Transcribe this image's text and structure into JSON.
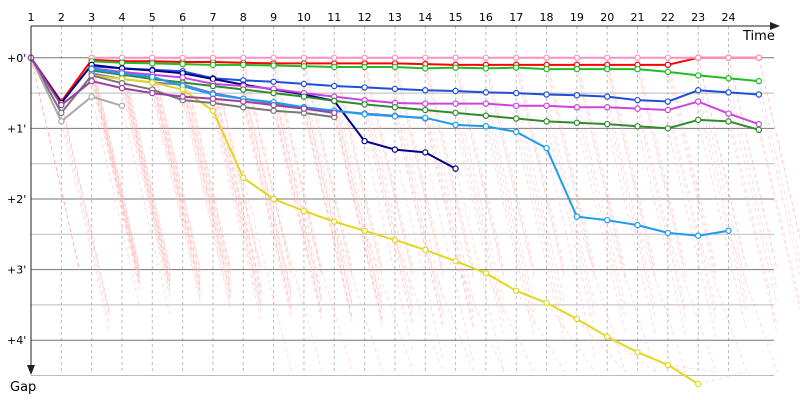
{
  "chart_data": {
    "type": "line",
    "xlabel": "Time",
    "ylabel": "Gap",
    "x_ticks": [
      "1",
      "2",
      "3",
      "4",
      "5",
      "6",
      "7",
      "8",
      "9",
      "10",
      "11",
      "12",
      "13",
      "14",
      "15",
      "16",
      "17",
      "18",
      "19",
      "20",
      "21",
      "22",
      "23",
      "24"
    ],
    "y_ticks": [
      "+0'",
      "+1'",
      "+2'",
      "+3'",
      "+4'"
    ],
    "y_tick_values": [
      0,
      1,
      2,
      3,
      4
    ],
    "xlim": [
      1,
      25.5
    ],
    "ylim": [
      -0.45,
      4.45
    ],
    "grid": true,
    "series": [
      {
        "color": "#ff0000",
        "points": [
          [
            1,
            0.0
          ],
          [
            2,
            0.62
          ],
          [
            3,
            0.03
          ],
          [
            4,
            0.05
          ],
          [
            5,
            0.05
          ],
          [
            6,
            0.06
          ],
          [
            7,
            0.06
          ],
          [
            8,
            0.07
          ],
          [
            9,
            0.08
          ],
          [
            10,
            0.08
          ],
          [
            11,
            0.08
          ],
          [
            12,
            0.08
          ],
          [
            13,
            0.08
          ],
          [
            14,
            0.09
          ],
          [
            15,
            0.1
          ],
          [
            16,
            0.1
          ],
          [
            17,
            0.1
          ],
          [
            18,
            0.1
          ],
          [
            19,
            0.1
          ],
          [
            20,
            0.1
          ],
          [
            21,
            0.1
          ],
          [
            22,
            0.1
          ],
          [
            23,
            0.0
          ],
          [
            24,
            0.0
          ],
          [
            25,
            0.0
          ]
        ]
      },
      {
        "color": "#ff8fbf",
        "points": [
          [
            3,
            0.0
          ],
          [
            4,
            0.0
          ],
          [
            5,
            0.0
          ],
          [
            6,
            0.0
          ],
          [
            7,
            0.0
          ],
          [
            8,
            0.0
          ],
          [
            9,
            0.0
          ],
          [
            10,
            0.0
          ],
          [
            11,
            0.0
          ],
          [
            12,
            0.0
          ],
          [
            13,
            0.0
          ],
          [
            14,
            0.0
          ],
          [
            15,
            0.0
          ],
          [
            16,
            0.0
          ],
          [
            17,
            0.0
          ],
          [
            18,
            0.0
          ],
          [
            19,
            0.0
          ],
          [
            20,
            0.0
          ],
          [
            21,
            0.0
          ],
          [
            22,
            0.0
          ],
          [
            23,
            0.0
          ],
          [
            24,
            0.0
          ],
          [
            25,
            0.0
          ]
        ]
      },
      {
        "color": "#22bb22",
        "points": [
          [
            3,
            0.05
          ],
          [
            4,
            0.07
          ],
          [
            5,
            0.08
          ],
          [
            6,
            0.09
          ],
          [
            7,
            0.1
          ],
          [
            8,
            0.1
          ],
          [
            9,
            0.11
          ],
          [
            10,
            0.12
          ],
          [
            11,
            0.13
          ],
          [
            12,
            0.13
          ],
          [
            13,
            0.13
          ],
          [
            14,
            0.15
          ],
          [
            15,
            0.14
          ],
          [
            16,
            0.15
          ],
          [
            17,
            0.14
          ],
          [
            18,
            0.16
          ],
          [
            19,
            0.16
          ],
          [
            20,
            0.16
          ],
          [
            21,
            0.16
          ],
          [
            22,
            0.2
          ],
          [
            23,
            0.25
          ],
          [
            24,
            0.29
          ],
          [
            25,
            0.33
          ]
        ]
      },
      {
        "color": "#1e4fd8",
        "points": [
          [
            3,
            0.12
          ],
          [
            4,
            0.15
          ],
          [
            5,
            0.17
          ],
          [
            6,
            0.19
          ],
          [
            7,
            0.29
          ],
          [
            8,
            0.32
          ],
          [
            9,
            0.34
          ],
          [
            10,
            0.37
          ],
          [
            11,
            0.4
          ],
          [
            12,
            0.42
          ],
          [
            13,
            0.44
          ],
          [
            14,
            0.46
          ],
          [
            15,
            0.47
          ],
          [
            16,
            0.49
          ],
          [
            17,
            0.5
          ],
          [
            18,
            0.52
          ],
          [
            19,
            0.53
          ],
          [
            20,
            0.55
          ],
          [
            21,
            0.6
          ],
          [
            22,
            0.62
          ],
          [
            23,
            0.46
          ],
          [
            24,
            0.49
          ],
          [
            25,
            0.52
          ]
        ]
      },
      {
        "color": "#000088",
        "points": [
          [
            1,
            0.0
          ],
          [
            2,
            0.64
          ],
          [
            3,
            0.1
          ],
          [
            4,
            0.15
          ],
          [
            5,
            0.18
          ],
          [
            6,
            0.22
          ],
          [
            7,
            0.3
          ],
          [
            8,
            0.38
          ],
          [
            9,
            0.45
          ],
          [
            10,
            0.52
          ],
          [
            11,
            0.61
          ],
          [
            12,
            1.18
          ],
          [
            13,
            1.3
          ],
          [
            14,
            1.34
          ],
          [
            15,
            1.57
          ]
        ]
      },
      {
        "color": "#cc44dd",
        "points": [
          [
            3,
            0.15
          ],
          [
            4,
            0.2
          ],
          [
            5,
            0.24
          ],
          [
            6,
            0.28
          ],
          [
            7,
            0.37
          ],
          [
            8,
            0.4
          ],
          [
            9,
            0.44
          ],
          [
            10,
            0.5
          ],
          [
            11,
            0.55
          ],
          [
            12,
            0.6
          ],
          [
            13,
            0.64
          ],
          [
            14,
            0.65
          ],
          [
            15,
            0.65
          ],
          [
            16,
            0.65
          ],
          [
            17,
            0.68
          ],
          [
            18,
            0.68
          ],
          [
            19,
            0.7
          ],
          [
            20,
            0.7
          ],
          [
            21,
            0.72
          ],
          [
            22,
            0.74
          ],
          [
            23,
            0.62
          ],
          [
            24,
            0.79
          ],
          [
            25,
            0.94
          ]
        ]
      },
      {
        "color": "#2e8b2e",
        "points": [
          [
            3,
            0.18
          ],
          [
            4,
            0.24
          ],
          [
            5,
            0.3
          ],
          [
            6,
            0.35
          ],
          [
            7,
            0.4
          ],
          [
            8,
            0.45
          ],
          [
            9,
            0.5
          ],
          [
            10,
            0.55
          ],
          [
            11,
            0.61
          ],
          [
            12,
            0.66
          ],
          [
            13,
            0.7
          ],
          [
            14,
            0.74
          ],
          [
            15,
            0.78
          ],
          [
            16,
            0.82
          ],
          [
            17,
            0.86
          ],
          [
            18,
            0.9
          ],
          [
            19,
            0.92
          ],
          [
            20,
            0.94
          ],
          [
            21,
            0.97
          ],
          [
            22,
            1.0
          ],
          [
            23,
            0.88
          ],
          [
            24,
            0.9
          ],
          [
            25,
            1.02
          ]
        ]
      },
      {
        "color": "#8877cc",
        "points": [
          [
            3,
            0.22
          ],
          [
            4,
            0.3
          ],
          [
            5,
            0.35
          ],
          [
            6,
            0.38
          ],
          [
            7,
            0.5
          ],
          [
            8,
            0.58
          ],
          [
            9,
            0.65
          ],
          [
            10,
            0.7
          ],
          [
            11,
            0.75
          ],
          [
            12,
            0.79
          ],
          [
            13,
            0.82
          ],
          [
            14,
            0.86
          ]
        ]
      },
      {
        "color": "#1a9cf0",
        "points": [
          [
            3,
            0.16
          ],
          [
            4,
            0.22
          ],
          [
            5,
            0.27
          ],
          [
            6,
            0.4
          ],
          [
            7,
            0.52
          ],
          [
            8,
            0.58
          ],
          [
            9,
            0.63
          ],
          [
            10,
            0.7
          ],
          [
            11,
            0.75
          ],
          [
            12,
            0.8
          ],
          [
            13,
            0.83
          ],
          [
            14,
            0.85
          ],
          [
            15,
            0.95
          ],
          [
            16,
            0.97
          ],
          [
            17,
            1.05
          ],
          [
            18,
            1.28
          ],
          [
            19,
            2.25
          ],
          [
            20,
            2.3
          ],
          [
            21,
            2.37
          ],
          [
            22,
            2.48
          ],
          [
            23,
            2.52
          ],
          [
            24,
            2.45
          ]
        ]
      },
      {
        "color": "#e0d820",
        "points": [
          [
            3,
            0.25
          ],
          [
            4,
            0.3
          ],
          [
            5,
            0.35
          ],
          [
            6,
            0.45
          ],
          [
            7,
            0.75
          ],
          [
            8,
            1.7
          ],
          [
            9,
            2.0
          ],
          [
            10,
            2.17
          ],
          [
            11,
            2.32
          ],
          [
            12,
            2.45
          ],
          [
            13,
            2.58
          ],
          [
            14,
            2.72
          ],
          [
            15,
            2.88
          ],
          [
            16,
            3.05
          ],
          [
            17,
            3.3
          ],
          [
            18,
            3.47
          ],
          [
            19,
            3.7
          ],
          [
            20,
            3.95
          ],
          [
            21,
            4.17
          ],
          [
            22,
            4.35
          ],
          [
            23,
            4.62
          ]
        ]
      },
      {
        "color": "#777777",
        "points": [
          [
            1,
            0.0
          ],
          [
            2,
            0.78
          ],
          [
            3,
            0.25
          ],
          [
            4,
            0.36
          ],
          [
            5,
            0.45
          ],
          [
            6,
            0.6
          ],
          [
            7,
            0.64
          ],
          [
            8,
            0.7
          ],
          [
            9,
            0.75
          ],
          [
            10,
            0.78
          ],
          [
            11,
            0.84
          ]
        ]
      },
      {
        "color": "#aaaaaa",
        "points": [
          [
            1,
            0.0
          ],
          [
            2,
            0.9
          ],
          [
            3,
            0.55
          ],
          [
            4,
            0.68
          ]
        ]
      },
      {
        "color": "#9b3fa0",
        "points": [
          [
            1,
            0.0
          ],
          [
            2,
            0.67
          ],
          [
            3,
            0.33
          ],
          [
            4,
            0.43
          ],
          [
            5,
            0.5
          ],
          [
            6,
            0.55
          ],
          [
            7,
            0.58
          ],
          [
            8,
            0.62
          ],
          [
            9,
            0.67
          ],
          [
            10,
            0.72
          ],
          [
            11,
            0.78
          ]
        ]
      }
    ]
  }
}
